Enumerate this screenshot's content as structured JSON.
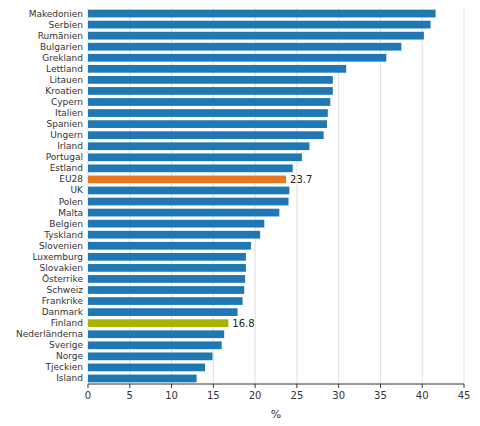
{
  "chart_data": {
    "type": "bar",
    "orientation": "horizontal",
    "categories": [
      "Makedonien",
      "Serbien",
      "Rumänien",
      "Bulgarien",
      "Grekland",
      "Lettland",
      "Litauen",
      "Kroatien",
      "Cypern",
      "Italien",
      "Spanien",
      "Ungern",
      "Irland",
      "Portugal",
      "Estland",
      "EU28",
      "UK",
      "Polen",
      "Malta",
      "Belgien",
      "Tyskland",
      "Slovenien",
      "Luxemburg",
      "Slovakien",
      "Österrike",
      "Schweiz",
      "Frankrike",
      "Danmark",
      "Finland",
      "Nederländerna",
      "Sverige",
      "Norge",
      "Tjeckien",
      "Island"
    ],
    "values": [
      41.6,
      41.0,
      40.2,
      37.5,
      35.7,
      30.9,
      29.3,
      29.3,
      29.0,
      28.7,
      28.6,
      28.2,
      26.5,
      25.6,
      24.5,
      23.7,
      24.1,
      24.0,
      22.9,
      21.1,
      20.6,
      19.5,
      18.9,
      18.9,
      18.8,
      18.7,
      18.5,
      17.9,
      16.8,
      16.3,
      16.0,
      14.9,
      14.0,
      13.0
    ],
    "colors": [
      "#1F77B4",
      "#1F77B4",
      "#1F77B4",
      "#1F77B4",
      "#1F77B4",
      "#1F77B4",
      "#1F77B4",
      "#1F77B4",
      "#1F77B4",
      "#1F77B4",
      "#1F77B4",
      "#1F77B4",
      "#1F77B4",
      "#1F77B4",
      "#1F77B4",
      "#E87722",
      "#1F77B4",
      "#1F77B4",
      "#1F77B4",
      "#1F77B4",
      "#1F77B4",
      "#1F77B4",
      "#1F77B4",
      "#1F77B4",
      "#1F77B4",
      "#1F77B4",
      "#1F77B4",
      "#1F77B4",
      "#A8B400",
      "#1F77B4",
      "#1F77B4",
      "#1F77B4",
      "#1F77B4",
      "#1F77B4"
    ],
    "annotations": [
      {
        "text": "23.7",
        "category": "EU28"
      },
      {
        "text": "16.8",
        "category": "Finland"
      }
    ],
    "xlabel": "%",
    "xlim": [
      0,
      45
    ],
    "xticks": [
      0,
      5,
      10,
      15,
      20,
      25,
      30,
      35,
      40,
      45
    ],
    "grid": true
  }
}
